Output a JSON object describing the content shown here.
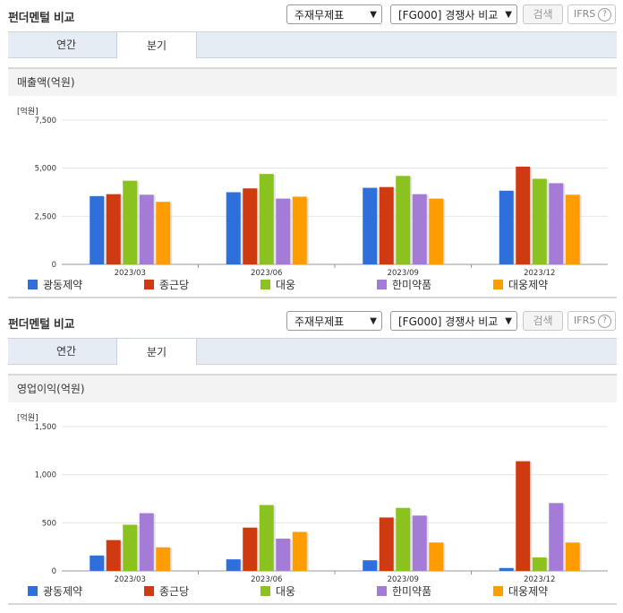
{
  "panels": [
    {
      "title": "펀더멘털 비교",
      "select1": "주재무제표",
      "select2": "[FG000] 경쟁사 비교",
      "search_label": "검색",
      "ifrs_label": "IFRS",
      "help_label": "?",
      "tabs": [
        "연간",
        "분기"
      ],
      "active_tab": 1,
      "chart_title": "매출액(억원)",
      "unit": "[억원]"
    },
    {
      "title": "펀더멘털 비교",
      "select1": "주재무제표",
      "select2": "[FG000] 경쟁사 비교",
      "search_label": "검색",
      "ifrs_label": "IFRS",
      "help_label": "?",
      "tabs": [
        "연간",
        "분기"
      ],
      "active_tab": 1,
      "chart_title": "영업이익(억원)",
      "unit": "[억원]"
    }
  ],
  "chart_data": [
    {
      "type": "bar",
      "title": "매출액(억원)",
      "ylabel": "[억원]",
      "categories": [
        "2023/03",
        "2023/06",
        "2023/09",
        "2023/12"
      ],
      "ylim": [
        0,
        7500
      ],
      "yticks": [
        0,
        2500,
        5000,
        7500
      ],
      "ytick_labels": [
        "0",
        "2,500",
        "5,000",
        "7,500"
      ],
      "grid": true,
      "legend_position": "bottom",
      "series": [
        {
          "name": "광동제약",
          "color": "#2e6fdc",
          "values": [
            3550,
            3750,
            3980,
            3830
          ]
        },
        {
          "name": "종근당",
          "color": "#d03a10",
          "values": [
            3650,
            3950,
            4020,
            5080
          ]
        },
        {
          "name": "대웅",
          "color": "#8cc220",
          "values": [
            4350,
            4700,
            4600,
            4450
          ]
        },
        {
          "name": "한미약품",
          "color": "#a57bd8",
          "values": [
            3620,
            3420,
            3650,
            4220
          ]
        },
        {
          "name": "대웅제약",
          "color": "#ff9c00",
          "values": [
            3250,
            3520,
            3420,
            3620
          ]
        }
      ]
    },
    {
      "type": "bar",
      "title": "영업이익(억원)",
      "ylabel": "[억원]",
      "categories": [
        "2023/03",
        "2023/06",
        "2023/09",
        "2023/12"
      ],
      "ylim": [
        0,
        1500
      ],
      "yticks": [
        0,
        500,
        1000,
        1500
      ],
      "ytick_labels": [
        "0",
        "500",
        "1,000",
        "1,500"
      ],
      "grid": true,
      "legend_position": "bottom",
      "series": [
        {
          "name": "광동제약",
          "color": "#2e6fdc",
          "values": [
            160,
            120,
            110,
            30
          ]
        },
        {
          "name": "종근당",
          "color": "#d03a10",
          "values": [
            320,
            450,
            555,
            1140
          ]
        },
        {
          "name": "대웅",
          "color": "#8cc220",
          "values": [
            480,
            685,
            655,
            140
          ]
        },
        {
          "name": "한미약품",
          "color": "#a57bd8",
          "values": [
            600,
            335,
            575,
            705
          ]
        },
        {
          "name": "대웅제약",
          "color": "#ff9c00",
          "values": [
            245,
            405,
            295,
            295
          ]
        }
      ]
    }
  ]
}
